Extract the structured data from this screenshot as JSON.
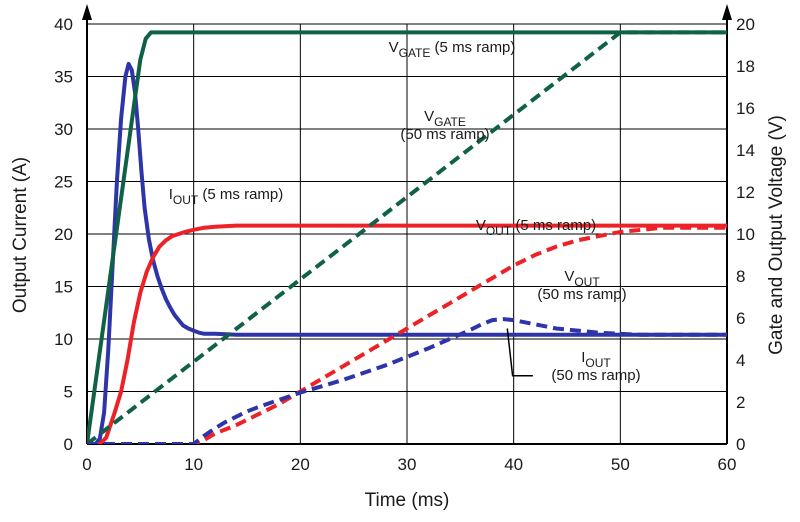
{
  "chart_data": {
    "type": "line",
    "title": "",
    "xlabel": "Time (ms)",
    "ylabel": "Output Current (A)",
    "y2label": "Gate and Output Voltage (V)",
    "xlim": [
      0,
      60
    ],
    "ylim": [
      0,
      40
    ],
    "y2lim": [
      0,
      20
    ],
    "grid": true,
    "xticks": [
      "0",
      "10",
      "20",
      "30",
      "40",
      "50",
      "60"
    ],
    "yticks": [
      "0",
      "5",
      "10",
      "15",
      "20",
      "25",
      "30",
      "35",
      "40"
    ],
    "y2ticks": [
      "0",
      "2",
      "4",
      "6",
      "8",
      "10",
      "12",
      "14",
      "16",
      "18",
      "20"
    ],
    "colors": {
      "iout": "#2e35a8",
      "vout": "#ec2227",
      "vgate": "#116148",
      "grid": "#000000"
    },
    "series": [
      {
        "id": "iout-5ms",
        "axis": "left",
        "style": "solid",
        "color": "#2e35a8",
        "x": [
          0,
          0.8,
          1.2,
          1.6,
          2.0,
          2.4,
          2.8,
          3.2,
          3.6,
          3.9,
          4.2,
          4.5,
          4.8,
          5.1,
          5.4,
          5.8,
          6.2,
          6.6,
          7.0,
          7.4,
          7.8,
          8.2,
          8.6,
          9.0,
          9.5,
          10.0,
          10.5,
          11.0,
          12.0,
          14.0,
          60
        ],
        "y": [
          0,
          0,
          0.5,
          3,
          9,
          17,
          25,
          31,
          35,
          36.2,
          35.6,
          33.5,
          30,
          26,
          22.5,
          19.5,
          17.5,
          16,
          14.8,
          13.8,
          13,
          12.3,
          11.8,
          11.3,
          11.0,
          10.8,
          10.6,
          10.5,
          10.5,
          10.4,
          10.4
        ]
      },
      {
        "id": "vgate-5ms",
        "axis": "right",
        "style": "solid",
        "color": "#116148",
        "x": [
          0,
          5.0,
          5.5,
          6.0,
          60
        ],
        "y": [
          0,
          18.3,
          19.3,
          19.6,
          19.6
        ]
      },
      {
        "id": "vout-5ms",
        "axis": "right",
        "style": "solid",
        "color": "#ec2227",
        "x": [
          0,
          1.2,
          1.8,
          2.6,
          3.2,
          3.8,
          4.4,
          5.0,
          5.6,
          6.2,
          6.8,
          7.4,
          8.0,
          8.6,
          9.2,
          10,
          11,
          12,
          14,
          60
        ],
        "y": [
          0,
          0,
          0.3,
          1.5,
          2.5,
          4.0,
          5.8,
          7.2,
          8.2,
          8.9,
          9.4,
          9.7,
          9.9,
          10.0,
          10.1,
          10.2,
          10.3,
          10.35,
          10.4,
          10.4
        ]
      },
      {
        "id": "vgate-50ms",
        "axis": "right",
        "style": "dashed",
        "color": "#116148",
        "x": [
          0,
          50,
          60
        ],
        "y": [
          0,
          19.6,
          19.6
        ]
      },
      {
        "id": "vout-50ms",
        "axis": "right",
        "style": "dashed",
        "color": "#ec2227",
        "x": [
          0,
          10,
          11,
          12,
          14,
          16,
          18,
          20,
          22,
          24,
          26,
          28,
          30,
          32,
          34,
          36,
          38,
          40,
          42,
          44,
          46,
          48,
          50,
          52,
          54,
          60
        ],
        "y": [
          0,
          0,
          0.2,
          0.5,
          0.9,
          1.4,
          1.9,
          2.5,
          3.1,
          3.7,
          4.3,
          4.9,
          5.5,
          6.1,
          6.7,
          7.3,
          7.9,
          8.5,
          9.0,
          9.4,
          9.7,
          9.9,
          10.1,
          10.2,
          10.3,
          10.3
        ]
      },
      {
        "id": "iout-50ms",
        "axis": "left",
        "style": "dashed",
        "color": "#2e35a8",
        "x": [
          0,
          10,
          10.5,
          11,
          12,
          13,
          14,
          15,
          16,
          18,
          20,
          22,
          24,
          26,
          28,
          30,
          32,
          34,
          36,
          37,
          38,
          39,
          40,
          41,
          42,
          44,
          46,
          48,
          50,
          52,
          55,
          60
        ],
        "y": [
          0,
          0,
          0.4,
          0.8,
          1.5,
          2.1,
          2.6,
          3.1,
          3.5,
          4.2,
          4.9,
          5.5,
          6.1,
          6.8,
          7.5,
          8.3,
          9.1,
          10.0,
          10.9,
          11.4,
          11.8,
          11.9,
          11.8,
          11.6,
          11.4,
          11.0,
          10.8,
          10.6,
          10.5,
          10.4,
          10.4,
          10.4
        ]
      }
    ],
    "annotations": [
      {
        "id": "label-vgate-5ms",
        "main": "V",
        "sub": "GATE",
        "rest": " (5 ms ramp)",
        "line2": ""
      },
      {
        "id": "label-vgate-50ms",
        "main": "V",
        "sub": "GATE",
        "rest": "",
        "line2": "(50 ms ramp)"
      },
      {
        "id": "label-iout-5ms",
        "main": "I",
        "sub": "OUT",
        "rest": " (5 ms ramp)",
        "line2": ""
      },
      {
        "id": "label-vout-5ms",
        "main": "V",
        "sub": "OUT",
        "rest": " (5 ms ramp)",
        "line2": ""
      },
      {
        "id": "label-vout-50ms",
        "main": "V",
        "sub": "OUT",
        "rest": "",
        "line2": "(50 ms ramp)"
      },
      {
        "id": "label-iout-50ms",
        "main": "I",
        "sub": "OUT",
        "rest": "",
        "line2": "(50 ms ramp)"
      }
    ]
  }
}
